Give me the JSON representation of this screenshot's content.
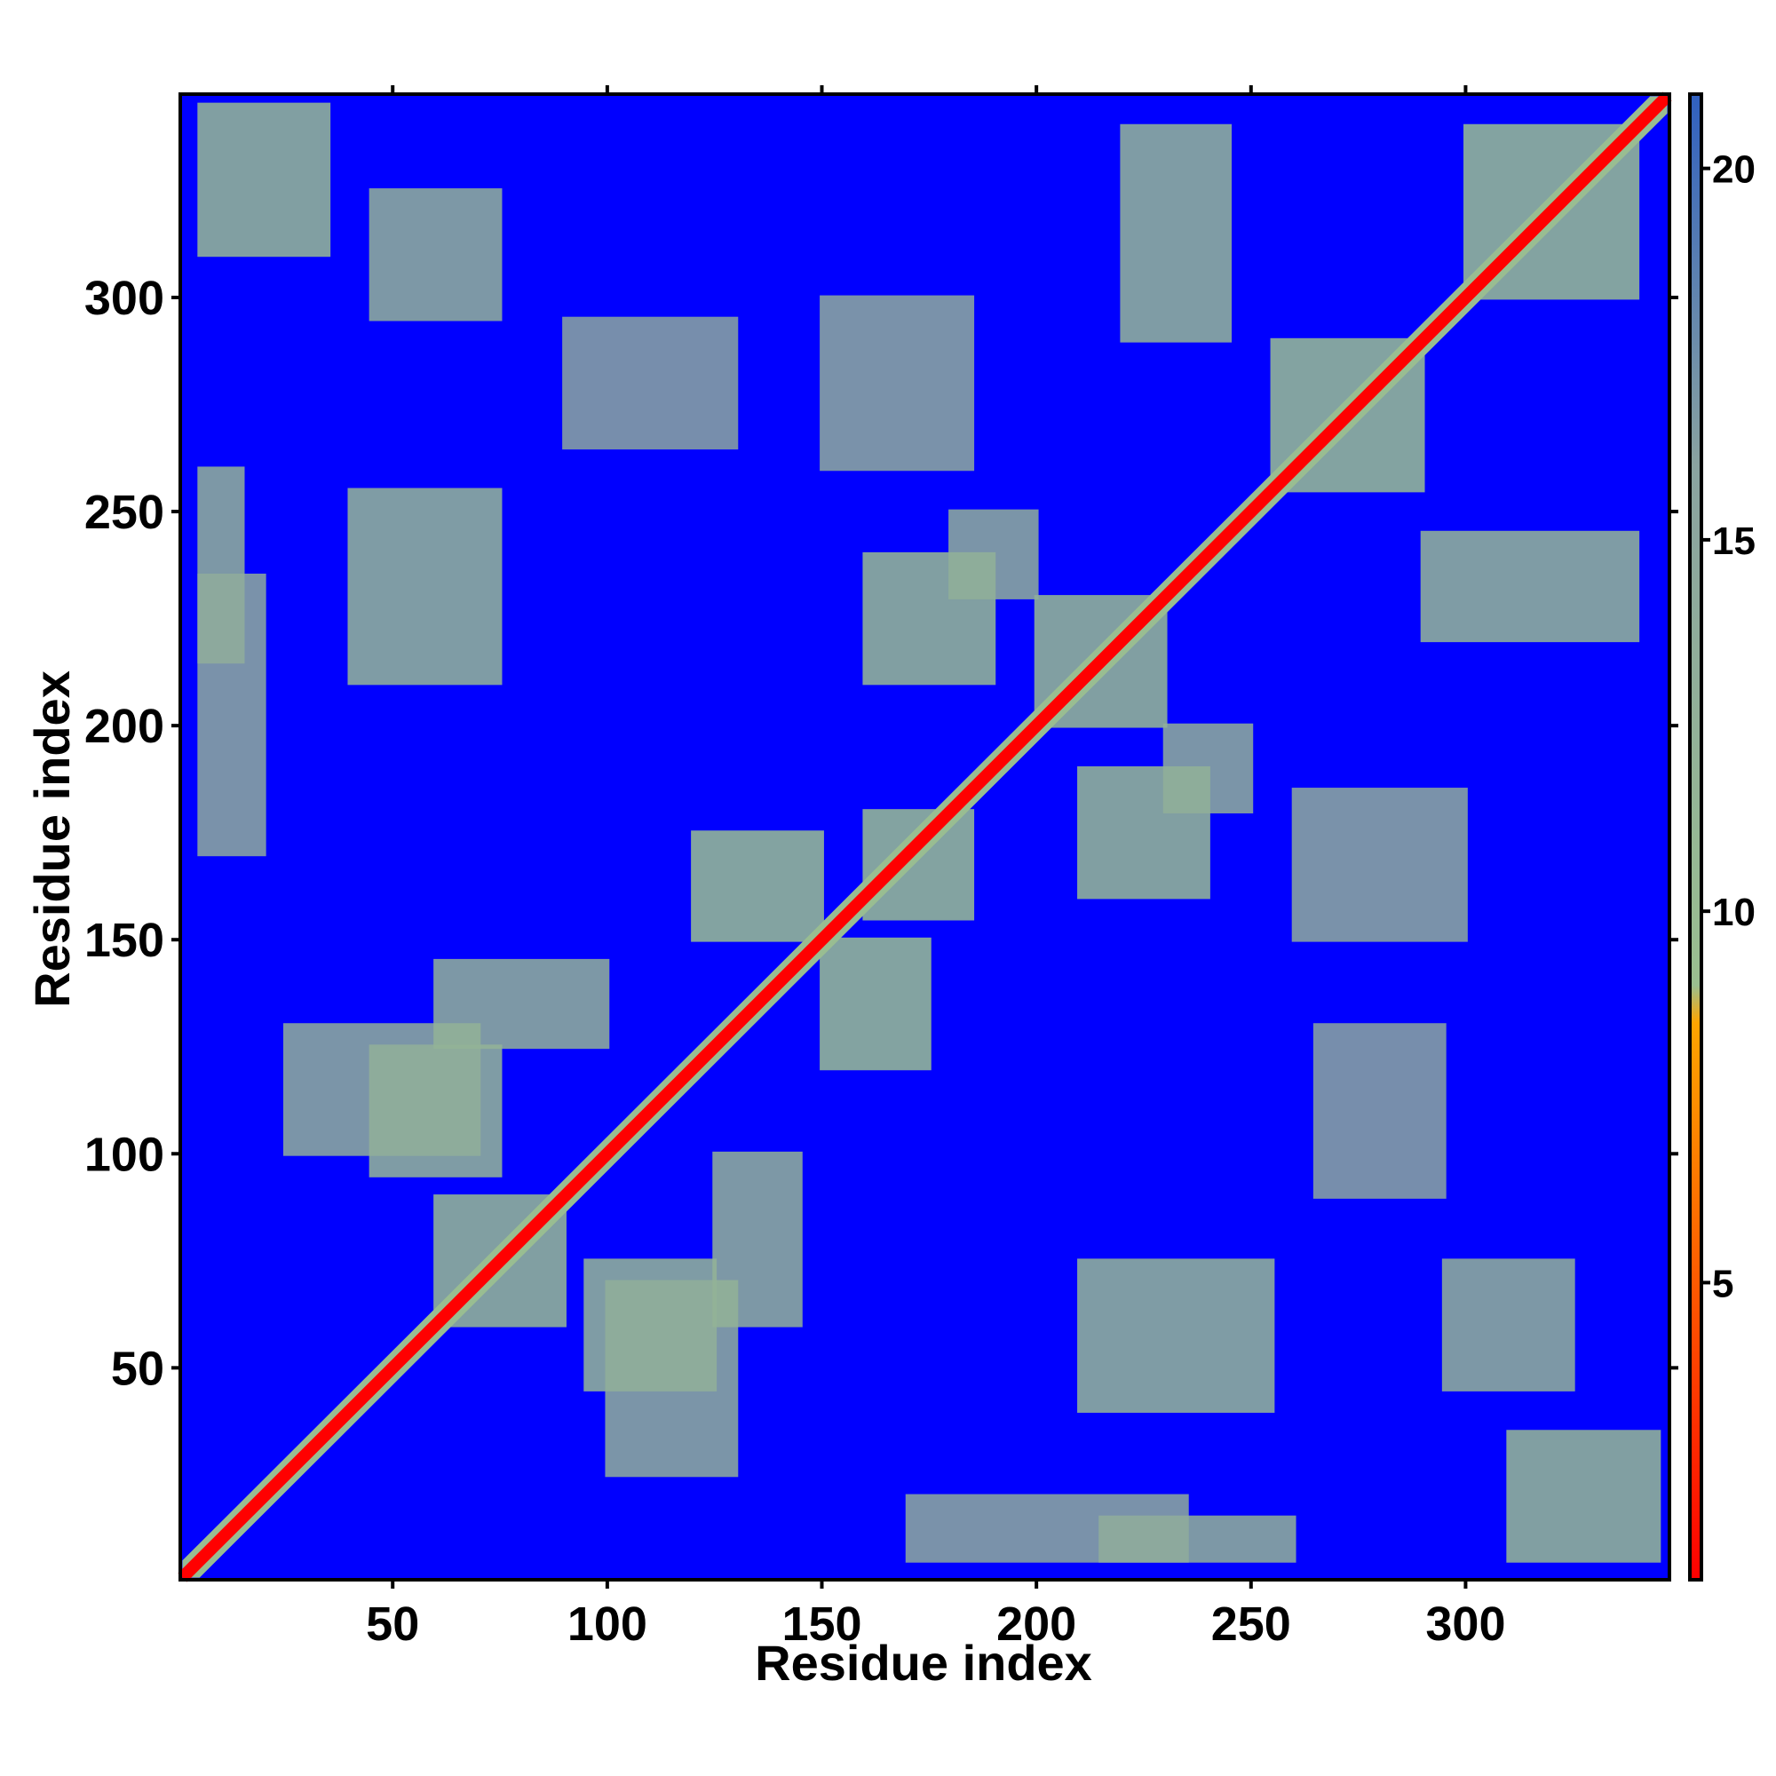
{
  "chart_data": {
    "type": "heatmap",
    "title": "",
    "xlabel": "Residue index",
    "ylabel": "Residue index",
    "n_residues": 347,
    "xlim": [
      1,
      347
    ],
    "ylim": [
      1,
      347
    ],
    "x_ticks": [
      50,
      100,
      150,
      200,
      250,
      300
    ],
    "y_ticks": [
      50,
      100,
      150,
      200,
      250,
      300
    ],
    "colorbar": {
      "ticks": [
        5,
        10,
        15,
        20
      ],
      "range": [
        1,
        21
      ],
      "stops": [
        {
          "value": 1,
          "color": "#ff0000"
        },
        {
          "value": 5,
          "color": "#ff5a00"
        },
        {
          "value": 8.5,
          "color": "#ffa500"
        },
        {
          "value": 9,
          "color": "#9abf90"
        },
        {
          "value": 16,
          "color": "#8aa3a0"
        },
        {
          "value": 21,
          "color": "#3060c0"
        }
      ]
    },
    "background_value": 21,
    "background_color": "#0000ff",
    "diagonal_band_halfwidth": 4,
    "contact_blocks": [
      {
        "x": [
          160,
          185
        ],
        "y": [
          155,
          180
        ],
        "value": 9
      },
      {
        "x": [
          120,
          150
        ],
        "y": [
          150,
          175
        ],
        "value": 9
      },
      {
        "x": [
          150,
          175
        ],
        "y": [
          120,
          150
        ],
        "value": 9
      },
      {
        "x": [
          60,
          90
        ],
        "y": [
          60,
          90
        ],
        "value": 10
      },
      {
        "x": [
          95,
          125
        ],
        "y": [
          45,
          75
        ],
        "value": 11
      },
      {
        "x": [
          45,
          75
        ],
        "y": [
          95,
          125
        ],
        "value": 11
      },
      {
        "x": [
          200,
          230
        ],
        "y": [
          200,
          230
        ],
        "value": 10
      },
      {
        "x": [
          210,
          240
        ],
        "y": [
          160,
          190
        ],
        "value": 10
      },
      {
        "x": [
          160,
          190
        ],
        "y": [
          210,
          240
        ],
        "value": 10
      },
      {
        "x": [
          255,
          290
        ],
        "y": [
          255,
          290
        ],
        "value": 9
      },
      {
        "x": [
          300,
          340
        ],
        "y": [
          300,
          340
        ],
        "value": 9
      },
      {
        "x": [
          5,
          35
        ],
        "y": [
          310,
          345
        ],
        "value": 10
      },
      {
        "x": [
          310,
          345
        ],
        "y": [
          5,
          35
        ],
        "value": 10
      },
      {
        "x": [
          40,
          75
        ],
        "y": [
          210,
          255
        ],
        "value": 11
      },
      {
        "x": [
          210,
          255
        ],
        "y": [
          40,
          75
        ],
        "value": 11
      },
      {
        "x": [
          220,
          245
        ],
        "y": [
          290,
          340
        ],
        "value": 11
      },
      {
        "x": [
          290,
          340
        ],
        "y": [
          220,
          245
        ],
        "value": 11
      },
      {
        "x": [
          215,
          260
        ],
        "y": [
          5,
          15
        ],
        "value": 12
      },
      {
        "x": [
          5,
          15
        ],
        "y": [
          215,
          260
        ],
        "value": 12
      },
      {
        "x": [
          295,
          325
        ],
        "y": [
          45,
          75
        ],
        "value": 12
      },
      {
        "x": [
          45,
          75
        ],
        "y": [
          295,
          325
        ],
        "value": 12
      },
      {
        "x": [
          25,
          70
        ],
        "y": [
          100,
          130
        ],
        "value": 13
      },
      {
        "x": [
          100,
          130
        ],
        "y": [
          25,
          70
        ],
        "value": 13
      },
      {
        "x": [
          180,
          200
        ],
        "y": [
          230,
          250
        ],
        "value": 13
      },
      {
        "x": [
          230,
          250
        ],
        "y": [
          180,
          200
        ],
        "value": 13
      },
      {
        "x": [
          260,
          300
        ],
        "y": [
          150,
          185
        ],
        "value": 14
      },
      {
        "x": [
          150,
          185
        ],
        "y": [
          260,
          300
        ],
        "value": 14
      },
      {
        "x": [
          5,
          20
        ],
        "y": [
          170,
          235
        ],
        "value": 14
      },
      {
        "x": [
          170,
          235
        ],
        "y": [
          5,
          20
        ],
        "value": 14
      },
      {
        "x": [
          125,
          145
        ],
        "y": [
          60,
          100
        ],
        "value": 12
      },
      {
        "x": [
          60,
          100
        ],
        "y": [
          125,
          145
        ],
        "value": 12
      },
      {
        "x": [
          265,
          295
        ],
        "y": [
          90,
          130
        ],
        "value": 15
      },
      {
        "x": [
          90,
          130
        ],
        "y": [
          265,
          295
        ],
        "value": 15
      }
    ]
  }
}
